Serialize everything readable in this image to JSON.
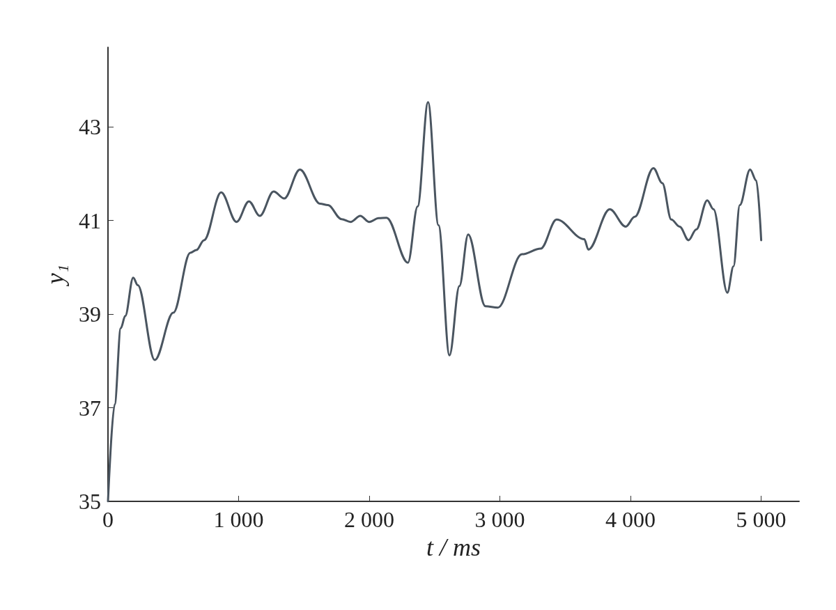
{
  "chart_data": {
    "type": "line",
    "xlabel": "t / ms",
    "ylabel": "y₁",
    "xlim": [
      0,
      5290
    ],
    "ylim": [
      35,
      44.7
    ],
    "xticks": [
      0,
      {
        "value": 1000,
        "label": "1 000"
      },
      {
        "value": 2000,
        "label": "2 000"
      },
      {
        "value": 3000,
        "label": "3 000"
      },
      {
        "value": 4000,
        "label": "4 000"
      },
      {
        "value": 5000,
        "label": "5 000"
      }
    ],
    "yticks": [
      35,
      37,
      39,
      41,
      43
    ],
    "grid": false,
    "marker": "none",
    "line_style": "solid",
    "series": [
      {
        "color": "#4a5560",
        "x": [
          0,
          51,
          98,
          132,
          193,
          228,
          358,
          500,
          630,
          677,
          735,
          866,
          984,
          1079,
          1162,
          1268,
          1349,
          1469,
          1623,
          1683,
          1788,
          1857,
          1931,
          2000,
          2072,
          2132,
          2296,
          2370,
          2450,
          2530,
          2614,
          2690,
          2757,
          2889,
          2984,
          3169,
          3312,
          3434,
          3646,
          3677,
          3841,
          3963,
          4032,
          4175,
          4243,
          4312,
          4376,
          4444,
          4503,
          4587,
          4635,
          4741,
          4788,
          4836,
          4915,
          4963,
          5000
        ],
        "values": [
          35.0,
          37.07,
          38.7,
          38.96,
          39.78,
          39.62,
          38.02,
          39.03,
          40.31,
          40.37,
          40.58,
          41.6,
          40.97,
          41.41,
          41.1,
          41.62,
          41.47,
          42.09,
          41.36,
          41.33,
          41.03,
          40.97,
          41.1,
          40.97,
          41.05,
          41.06,
          40.1,
          41.3,
          43.53,
          40.9,
          38.12,
          39.6,
          40.7,
          39.17,
          39.14,
          40.28,
          40.4,
          41.02,
          40.6,
          40.38,
          41.24,
          40.87,
          41.08,
          42.12,
          41.8,
          41.02,
          40.87,
          40.58,
          40.81,
          41.43,
          41.24,
          39.46,
          40.02,
          41.33,
          42.09,
          41.85,
          40.58
        ]
      }
    ]
  }
}
